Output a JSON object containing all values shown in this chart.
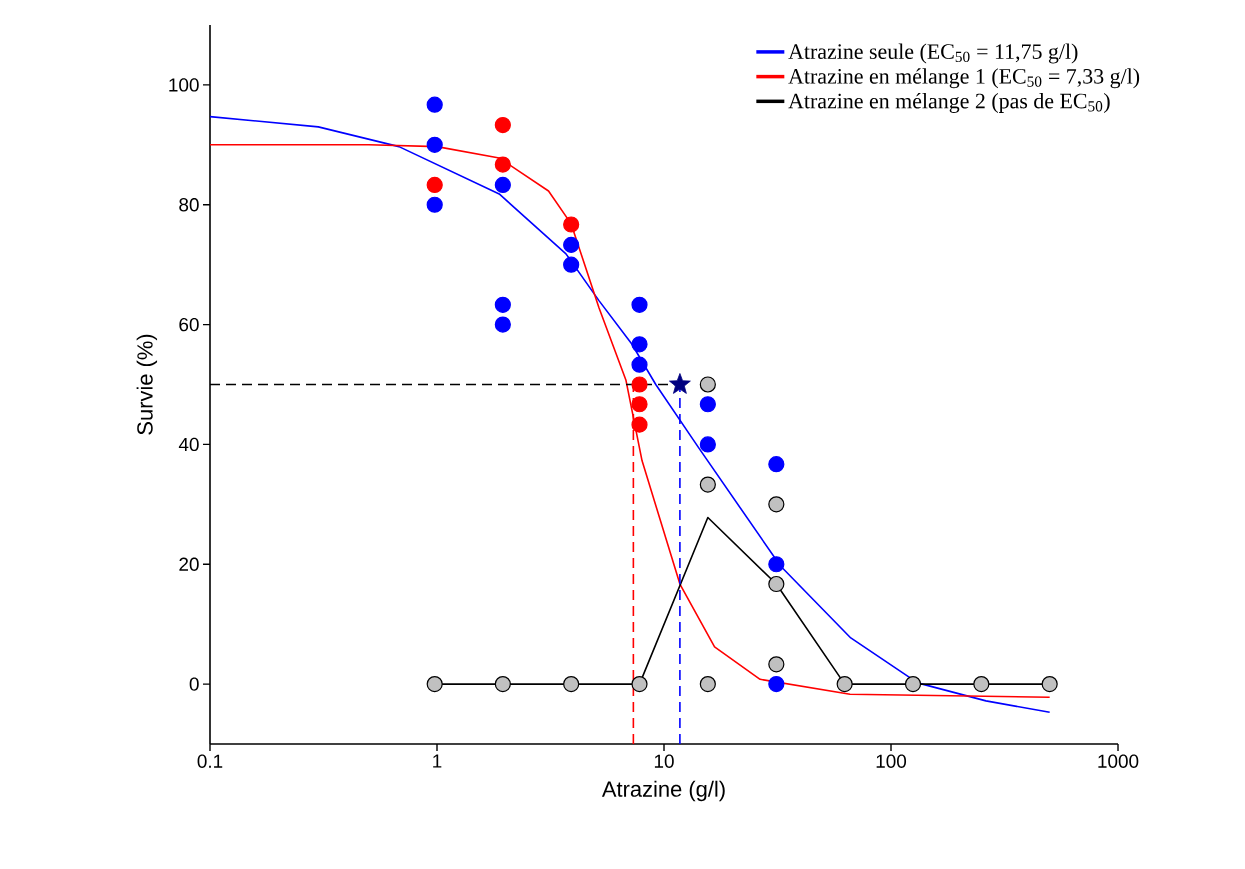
{
  "chart_data": {
    "type": "scatter",
    "xlabel": "Atrazine (g/l)",
    "ylabel": "Survie (%)",
    "log": "x",
    "xlim": [
      0.1,
      1000
    ],
    "ylim": [
      -10,
      110
    ],
    "xticks": [
      0.1,
      1,
      10,
      100,
      1000
    ],
    "yticks": [
      0,
      20,
      40,
      60,
      80,
      100
    ],
    "grid": false,
    "legend": "top right",
    "series": [
      {
        "name": "Atrazine seule (EC$_{50}$ = 11,75 g/l)",
        "type": "line",
        "color": "#0000ff",
        "marker": "none",
        "x": [
          0.1,
          0.3,
          0.68,
          1.88,
          3.7,
          5.17,
          7.2,
          9.2,
          14.3,
          32.6,
          66.5,
          131,
          262,
          500
        ],
        "values": [
          94.7,
          93,
          89.7,
          81.8,
          71.8,
          64,
          56.8,
          50,
          39.3,
          19.7,
          7.7,
          0.2,
          -2.8,
          -4.7
        ]
      },
      {
        "name": "Atrazine en mélange 1 (EC$_{50}$ = 7,33 g/l)",
        "type": "line",
        "color": "#ff0000",
        "marker": "none",
        "x": [
          0.1,
          0.5,
          1,
          1.88,
          3.1,
          3.9,
          5.17,
          6.8,
          8.0,
          11.75,
          16.7,
          26.5,
          66,
          500
        ],
        "values": [
          90,
          90,
          89.7,
          87.8,
          82.3,
          76.8,
          62.8,
          50.7,
          37.3,
          16.7,
          6.2,
          0.8,
          -1.7,
          -2.2
        ]
      },
      {
        "name": "Atrazine en mélange 2 (pas de EC$_{50}$)",
        "type": "line",
        "color": "#000000",
        "marker": "none",
        "x": [
          0.977,
          1.95,
          3.9,
          7.8,
          15.6,
          31.25,
          62.5,
          125,
          250,
          500
        ],
        "values": [
          0,
          0,
          0,
          0,
          27.8,
          16.7,
          0,
          0,
          0,
          0
        ]
      },
      {
        "color": "#0000ff",
        "marker": "circle",
        "x": [
          0.977,
          0.977,
          0.977,
          1.95,
          1.95,
          1.95,
          3.9,
          3.9,
          7.8,
          7.8,
          7.8,
          15.6,
          15.6,
          31.25,
          31.25,
          31.25
        ],
        "values": [
          96.7,
          90,
          80,
          83.3,
          63.3,
          60,
          73.3,
          70,
          63.3,
          56.7,
          53.3,
          46.7,
          40,
          36.7,
          20,
          0
        ]
      },
      {
        "color": "#ff0000",
        "marker": "circle",
        "x": [
          0.977,
          1.95,
          1.95,
          3.9,
          7.8,
          7.8,
          7.8
        ],
        "values": [
          83.3,
          93.3,
          86.7,
          76.7,
          50,
          46.7,
          43.3
        ]
      },
      {
        "color": "#c0c0c0",
        "marker": "circle",
        "x": [
          0.977,
          1.95,
          3.9,
          7.8,
          15.6,
          15.6,
          15.6,
          31.25,
          31.25,
          31.25,
          62.5,
          125,
          250,
          500
        ],
        "values": [
          0,
          0,
          0,
          0,
          50,
          33.3,
          0,
          30,
          16.7,
          3.3,
          0,
          0,
          0,
          0
        ]
      },
      {
        "type": "line",
        "color": "#ff0000",
        "marker": "none",
        "line_style": "dashed",
        "x": [
          7.33,
          7.33
        ],
        "values": [
          -10,
          50
        ]
      },
      {
        "type": "line",
        "color": "#0000ff",
        "marker": "none",
        "line_style": "dashed",
        "x": [
          11.75,
          11.75
        ],
        "values": [
          -10,
          50
        ]
      },
      {
        "type": "line",
        "color": "#000000",
        "marker": "none",
        "line_style": "dashed",
        "x": [
          0.1,
          11.75
        ],
        "values": [
          50,
          50
        ]
      },
      {
        "color": "#000080",
        "marker": "star",
        "x": [
          11.75
        ],
        "values": [
          50
        ]
      }
    ]
  }
}
